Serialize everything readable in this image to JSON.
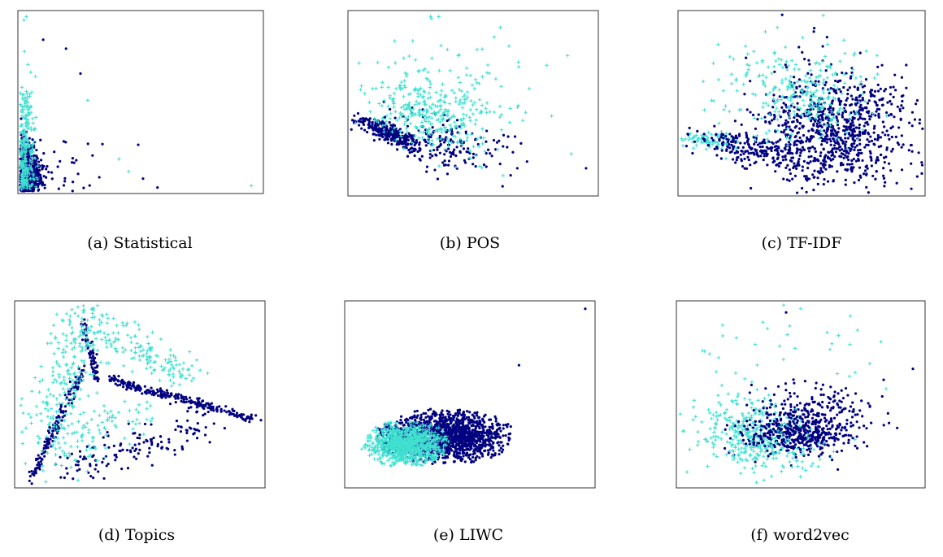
{
  "figure": {
    "series": [
      {
        "key": "class_a",
        "marker": "plus",
        "color": "#40E0D0"
      },
      {
        "key": "class_b",
        "marker": "dot",
        "color": "#000080"
      }
    ]
  },
  "chart_data": [
    {
      "type": "scatter",
      "panel": "a",
      "caption": "(a) Statistical",
      "xlim": [
        0,
        100
      ],
      "ylim": [
        0,
        100
      ],
      "axes_ticks": "none",
      "clusters": [
        {
          "series": "class_b",
          "n": 620,
          "cx": 2.5,
          "cy": 8,
          "sx": 3,
          "sy": 10,
          "clipMinX": 0,
          "clipMinY": 0
        },
        {
          "series": "class_a",
          "n": 260,
          "cx": 2,
          "cy": 20,
          "sx": 2,
          "sy": 22,
          "clipMinX": 0,
          "clipMinY": 0
        },
        {
          "series": "class_b",
          "n": 40,
          "cx": 14,
          "cy": 12,
          "sx": 8,
          "sy": 10,
          "clipMinX": 0,
          "clipMinY": 0
        }
      ],
      "points": [
        {
          "series": "class_a",
          "x": 1.5,
          "y": 96
        },
        {
          "series": "class_a",
          "x": 2.5,
          "y": 98
        },
        {
          "series": "class_b",
          "x": 9.5,
          "y": 85
        },
        {
          "series": "class_b",
          "x": 19,
          "y": 80
        },
        {
          "series": "class_b",
          "x": 25,
          "y": 66
        },
        {
          "series": "class_a",
          "x": 28,
          "y": 51
        },
        {
          "series": "class_b",
          "x": 30,
          "y": 20
        },
        {
          "series": "class_a",
          "x": 41,
          "y": 18
        },
        {
          "series": "class_b",
          "x": 49,
          "y": 26
        },
        {
          "series": "class_a",
          "x": 45,
          "y": 11
        },
        {
          "series": "class_b",
          "x": 51,
          "y": 7
        },
        {
          "series": "class_b",
          "x": 57,
          "y": 2
        },
        {
          "series": "class_a",
          "x": 96,
          "y": 3
        }
      ]
    },
    {
      "type": "scatter",
      "panel": "b",
      "caption": "(b) POS",
      "xlim": [
        0,
        100
      ],
      "ylim": [
        0,
        100
      ],
      "axes_ticks": "none",
      "clusters": [
        {
          "series": "class_b",
          "n": 280,
          "cx": 15,
          "cy": 34,
          "sx": 6,
          "sy": 4,
          "rho": -0.8
        },
        {
          "series": "class_b",
          "n": 180,
          "cx": 38,
          "cy": 28,
          "sx": 12,
          "sy": 8,
          "rho": -0.4
        },
        {
          "series": "class_a",
          "n": 320,
          "cx": 32,
          "cy": 45,
          "sx": 12,
          "sy": 12,
          "rho": -0.3
        },
        {
          "series": "class_a",
          "n": 60,
          "cx": 50,
          "cy": 60,
          "sx": 14,
          "sy": 15
        }
      ],
      "points": [
        {
          "series": "class_a",
          "x": 33,
          "y": 97
        },
        {
          "series": "class_a",
          "x": 36,
          "y": 98
        },
        {
          "series": "class_a",
          "x": 80,
          "y": 71
        },
        {
          "series": "class_a",
          "x": 82,
          "y": 43
        },
        {
          "series": "class_a",
          "x": 90,
          "y": 22
        },
        {
          "series": "class_b",
          "x": 96,
          "y": 14
        },
        {
          "series": "class_b",
          "x": 62,
          "y": 4
        },
        {
          "series": "class_b",
          "x": 68,
          "y": 14
        }
      ]
    },
    {
      "type": "scatter",
      "panel": "c",
      "caption": "(c) TF-IDF",
      "xlim": [
        0,
        100
      ],
      "ylim": [
        0,
        100
      ],
      "axes_ticks": "none",
      "clusters": [
        {
          "series": "class_a",
          "n": 80,
          "cx": 12,
          "cy": 30,
          "sx": 6,
          "sy": 2
        },
        {
          "series": "class_b",
          "n": 220,
          "cx": 30,
          "cy": 25,
          "sx": 12,
          "sy": 5,
          "rho": -0.5
        },
        {
          "series": "class_b",
          "n": 900,
          "cx": 65,
          "cy": 35,
          "sx": 16,
          "sy": 17
        },
        {
          "series": "class_a",
          "n": 280,
          "cx": 48,
          "cy": 55,
          "sx": 14,
          "sy": 14
        }
      ],
      "points": [
        {
          "series": "class_b",
          "x": 42,
          "y": 99
        },
        {
          "series": "class_a",
          "x": 40,
          "y": 92
        },
        {
          "series": "class_b",
          "x": 3,
          "y": 33
        }
      ]
    },
    {
      "type": "scatter",
      "panel": "d",
      "caption": "(d) Topics",
      "xlim": [
        0,
        100
      ],
      "ylim": [
        0,
        100
      ],
      "axes_ticks": "none",
      "segments": [
        {
          "series": "class_b",
          "n": 150,
          "from": [
            6,
            3
          ],
          "to": [
            27,
            65
          ],
          "spread": 1.0
        },
        {
          "series": "class_b",
          "n": 240,
          "from": [
            38,
            58
          ],
          "to": [
            98,
            36
          ],
          "spread": 1.2
        },
        {
          "series": "class_b",
          "n": 60,
          "from": [
            27,
            90
          ],
          "to": [
            33,
            57
          ],
          "spread": 0.8
        },
        {
          "series": "class_b",
          "n": 140,
          "from": [
            20,
            10
          ],
          "to": [
            80,
            35
          ],
          "spread": 5.5
        },
        {
          "series": "class_a",
          "n": 220,
          "from": [
            12,
            25
          ],
          "to": [
            27,
            92
          ],
          "spread": 6.0
        },
        {
          "series": "class_a",
          "n": 160,
          "from": [
            28,
            90
          ],
          "to": [
            70,
            60
          ],
          "spread": 5.0
        },
        {
          "series": "class_a",
          "n": 100,
          "from": [
            10,
            12
          ],
          "to": [
            50,
            40
          ],
          "spread": 7.0
        }
      ],
      "points": [
        {
          "series": "class_a",
          "x": 27,
          "y": 96
        },
        {
          "series": "class_b",
          "x": 6,
          "y": 1
        }
      ]
    },
    {
      "type": "scatter",
      "panel": "e",
      "caption": "(e) LIWC",
      "xlim": [
        0,
        100
      ],
      "ylim": [
        0,
        100
      ],
      "axes_ticks": "none",
      "clusters": [
        {
          "series": "class_b",
          "n": 1500,
          "cx": 40,
          "cy": 27,
          "sx": 13,
          "sy": 7,
          "ellipse": 2.2
        },
        {
          "series": "class_a",
          "n": 900,
          "cx": 24,
          "cy": 23,
          "sx": 8,
          "sy": 6,
          "ellipse": 2.2
        }
      ],
      "points": [
        {
          "series": "class_b",
          "x": 97,
          "y": 97
        },
        {
          "series": "class_b",
          "x": 70,
          "y": 66
        },
        {
          "series": "class_a",
          "x": 6,
          "y": 20
        }
      ]
    },
    {
      "type": "scatter",
      "panel": "f",
      "caption": "(f) word2vec",
      "xlim": [
        0,
        100
      ],
      "ylim": [
        0,
        100
      ],
      "axes_ticks": "none",
      "clusters": [
        {
          "series": "class_a",
          "n": 260,
          "cx": 28,
          "cy": 30,
          "sx": 10,
          "sy": 9
        },
        {
          "series": "class_b",
          "n": 420,
          "cx": 48,
          "cy": 28,
          "sx": 11,
          "sy": 6
        },
        {
          "series": "class_b",
          "n": 200,
          "cx": 58,
          "cy": 40,
          "sx": 13,
          "sy": 9
        },
        {
          "series": "class_a",
          "n": 120,
          "cx": 38,
          "cy": 20,
          "sx": 12,
          "sy": 8
        },
        {
          "series": "class_a",
          "n": 35,
          "cx": 40,
          "cy": 70,
          "sx": 20,
          "sy": 15
        }
      ],
      "points": [
        {
          "series": "class_b",
          "x": 44,
          "y": 95
        },
        {
          "series": "class_a",
          "x": 43,
          "y": 99
        },
        {
          "series": "class_a",
          "x": 50,
          "y": 97
        },
        {
          "series": "class_b",
          "x": 96,
          "y": 64
        },
        {
          "series": "class_b",
          "x": 84,
          "y": 58
        },
        {
          "series": "class_a",
          "x": 85,
          "y": 53
        },
        {
          "series": "class_a",
          "x": 6,
          "y": 43
        }
      ]
    }
  ]
}
